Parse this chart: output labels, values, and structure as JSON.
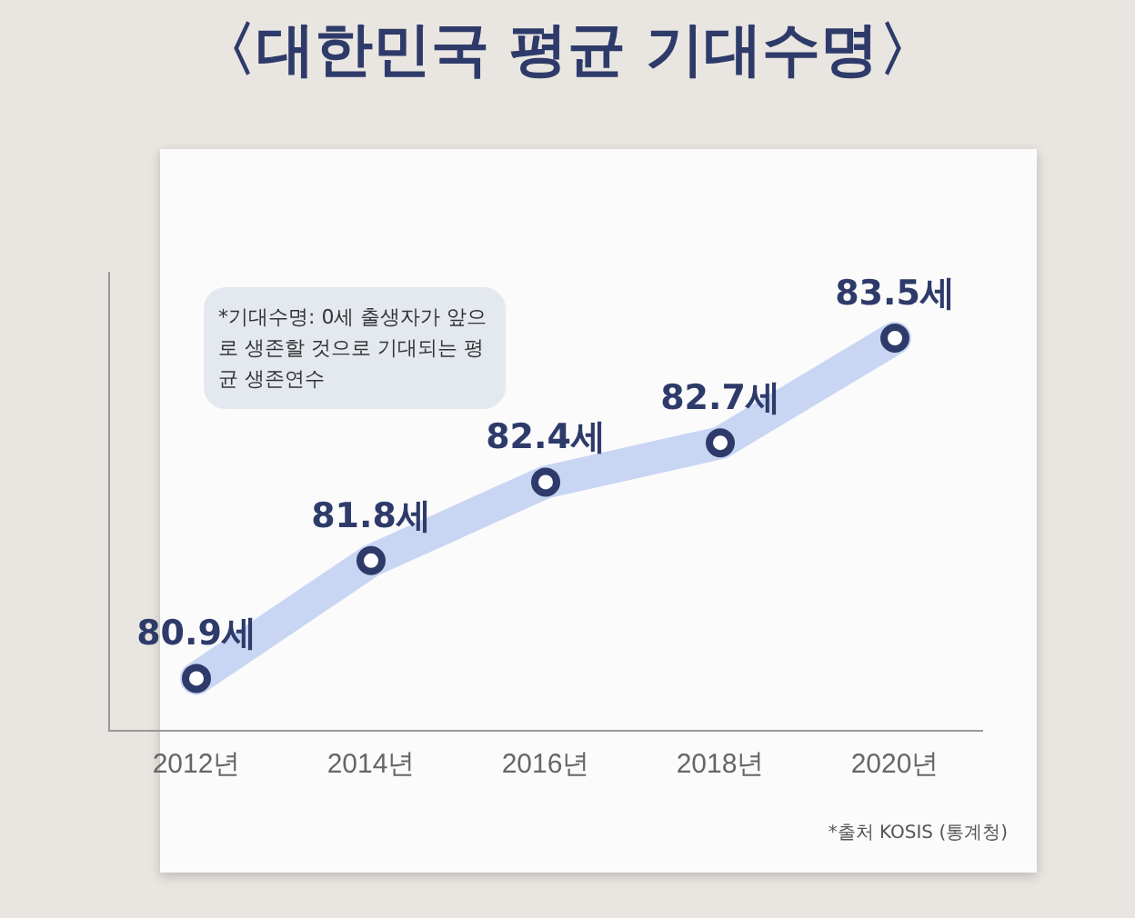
{
  "chart_data": {
    "type": "line",
    "title": "〈대한민국 평균 기대수명〉",
    "categories": [
      "2012년",
      "2014년",
      "2016년",
      "2018년",
      "2020년"
    ],
    "series": [
      {
        "color": "#c8d5f3",
        "values": [
          80.9,
          81.8,
          82.4,
          82.7,
          83.5
        ],
        "value_labels": [
          "80.9세",
          "81.8세",
          "82.4세",
          "82.7세",
          "83.5세"
        ]
      }
    ],
    "marker": "circle",
    "tick_labels": "x",
    "grid": false,
    "legend": false,
    "annotations": [
      "*기대수명: 0세 출생자가 앞으로 생존할 것으로 기대되는 평균 생존연수",
      "*출처 KOSIS (통계청)"
    ]
  }
}
